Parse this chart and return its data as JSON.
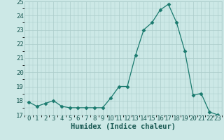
{
  "x": [
    0,
    1,
    2,
    3,
    4,
    5,
    6,
    7,
    8,
    9,
    10,
    11,
    12,
    13,
    14,
    15,
    16,
    17,
    18,
    19,
    20,
    21,
    22,
    23
  ],
  "y": [
    17.9,
    17.6,
    17.8,
    18.0,
    17.6,
    17.5,
    17.5,
    17.5,
    17.5,
    17.5,
    18.2,
    19.0,
    19.0,
    21.2,
    23.0,
    23.5,
    24.4,
    24.8,
    23.5,
    21.5,
    18.4,
    18.5,
    17.2,
    17.0
  ],
  "xlabel": "Humidex (Indice chaleur)",
  "ylim": [
    17,
    25
  ],
  "xlim": [
    -0.5,
    23.5
  ],
  "yticks": [
    17,
    18,
    19,
    20,
    21,
    22,
    23,
    24,
    25
  ],
  "xticks": [
    0,
    1,
    2,
    3,
    4,
    5,
    6,
    7,
    8,
    9,
    10,
    11,
    12,
    13,
    14,
    15,
    16,
    17,
    18,
    19,
    20,
    21,
    22,
    23
  ],
  "line_color": "#1a7a6e",
  "marker": "D",
  "marker_size": 2.5,
  "bg_color": "#cce8e6",
  "grid_color": "#aaccca",
  "label_fontsize": 7.5,
  "tick_fontsize": 6.5
}
